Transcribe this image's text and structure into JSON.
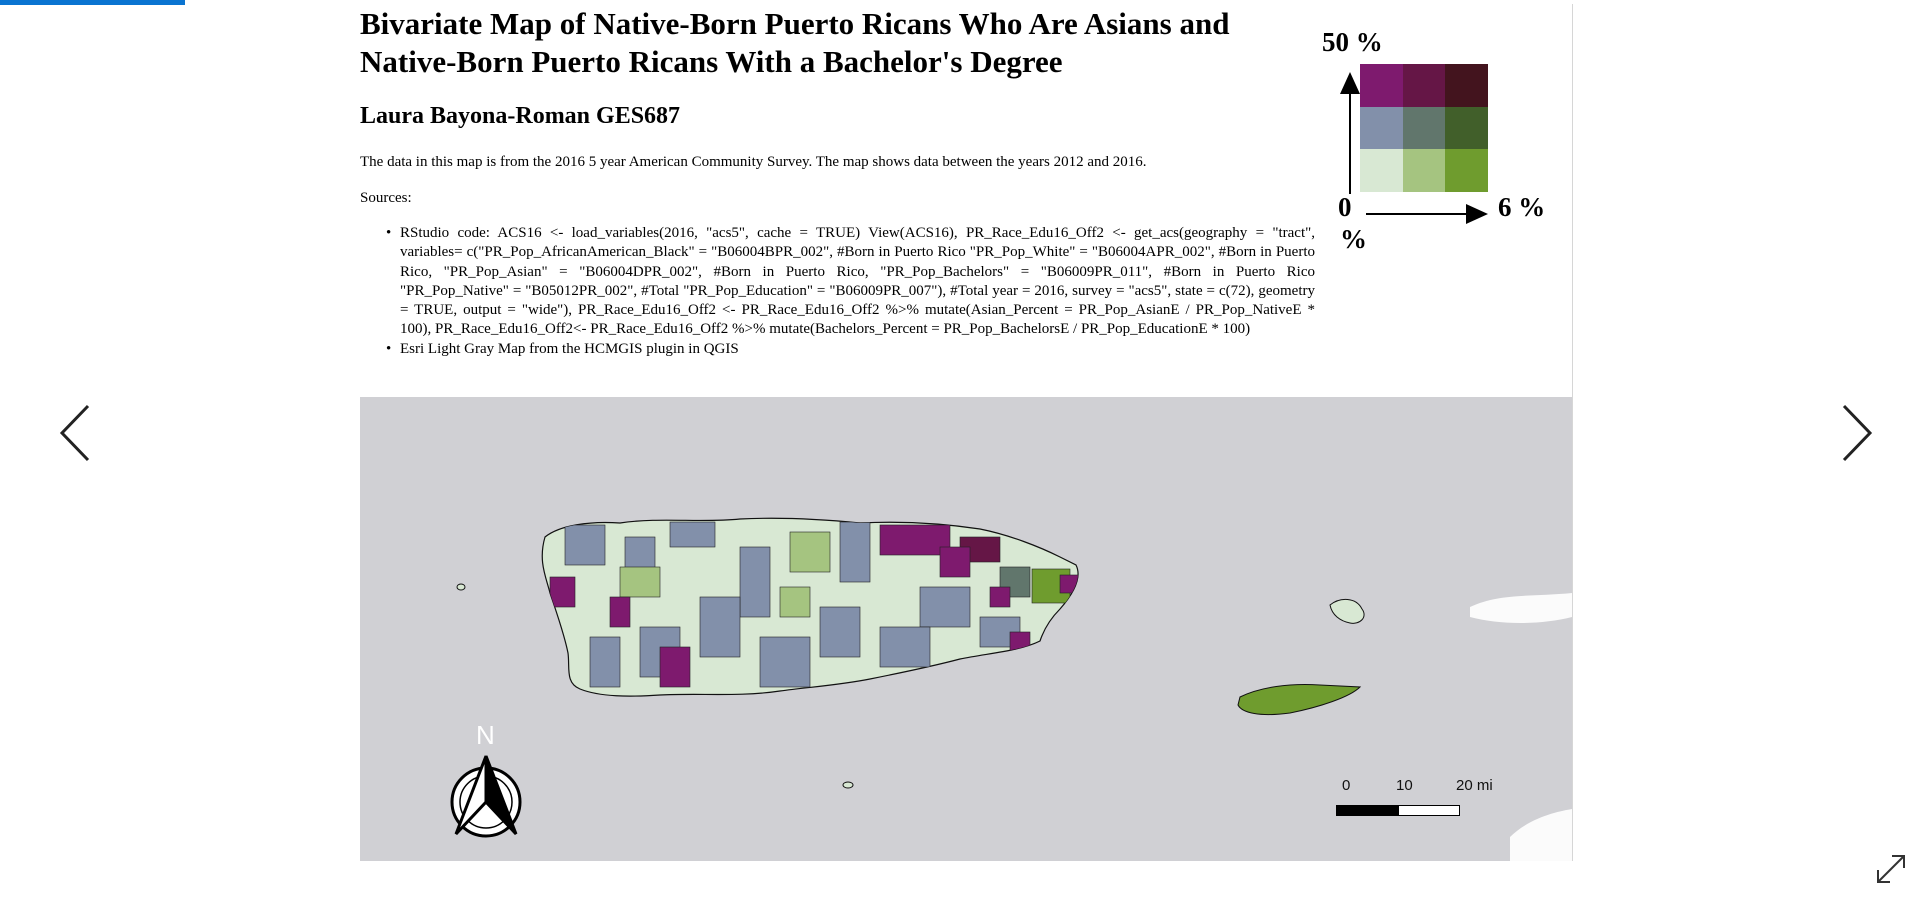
{
  "slide": {
    "title": "Bivariate Map of Native-Born Puerto Ricans Who Are Asians and Native-Born Puerto Ricans With a Bachelor's Degree",
    "author": "Laura Bayona-Roman GES687",
    "description": "The data in this map is from the 2016 5 year American Community Survey. The map shows data between the years 2012 and 2016.",
    "sources_label": "Sources:",
    "sources": [
      "RStudio code: ACS16 <- load_variables(2016, \"acs5\", cache = TRUE) View(ACS16), PR_Race_Edu16_Off2 <- get_acs(geography = \"tract\", variables= c(\"PR_Pop_AfricanAmerican_Black\" = \"B06004BPR_002\", #Born in Puerto Rico \"PR_Pop_White\" = \"B06004APR_002\", #Born in Puerto Rico, \"PR_Pop_Asian\" = \"B06004DPR_002\", #Born in Puerto Rico, \"PR_Pop_Bachelors\" = \"B06009PR_011\", #Born in Puerto Rico \"PR_Pop_Native\" = \"B05012PR_002\", #Total \"PR_Pop_Education\" = \"B06009PR_007\"), #Total year = 2016, survey = \"acs5\", state = c(72), geometry = TRUE, output = \"wide\"), PR_Race_Edu16_Off2 <- PR_Race_Edu16_Off2 %>% mutate(Asian_Percent = PR_Pop_AsianE / PR_Pop_NativeE * 100), PR_Race_Edu16_Off2<- PR_Race_Edu16_Off2 %>% mutate(Bachelors_Percent = PR_Pop_BachelorsE / PR_Pop_EducationE * 100)",
      "Esri Light Gray Map from the HCMGIS plugin in QGIS"
    ]
  },
  "legend": {
    "y_max": "50 %",
    "x_max": "6 %",
    "origin": "0",
    "origin_unit": "%",
    "colors": [
      [
        "#7e1a6e",
        "#651646",
        "#43141e"
      ],
      [
        "#8290aa",
        "#61766c",
        "#415f2a"
      ],
      [
        "#d8e8d3",
        "#a5c480",
        "#6f9c2e"
      ]
    ]
  },
  "map": {
    "background": "#d0d0d4",
    "north_label": "N",
    "scale": {
      "labels": [
        "0",
        "10",
        "20 mi"
      ]
    }
  },
  "viewer": {
    "accent": "#0a74d1",
    "prev_icon": "chevron-left-icon",
    "next_icon": "chevron-right-icon",
    "expand_icon": "expand-icon"
  }
}
